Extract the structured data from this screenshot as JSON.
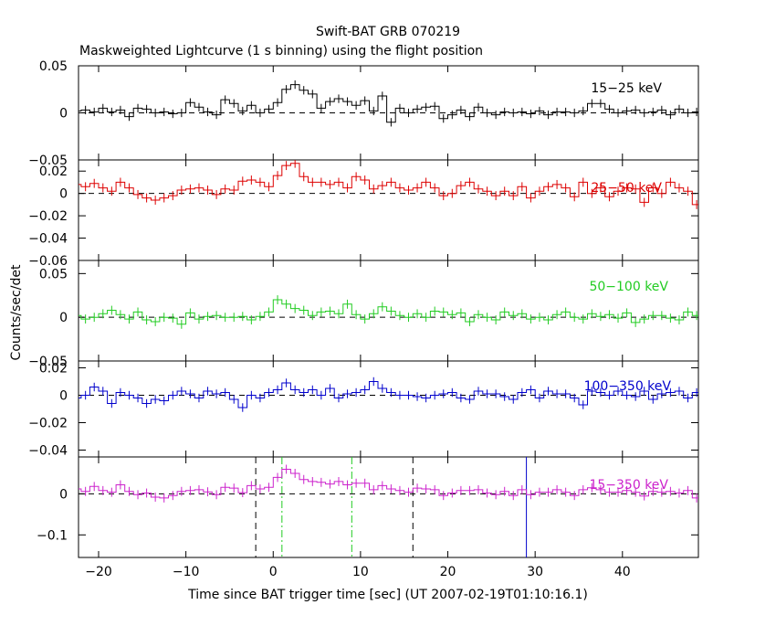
{
  "figure": {
    "title": "Swift-BAT GRB 070219",
    "subtitle": "Maskweighted Lightcurve (1 s binning) using the flight position",
    "xlabel": "Time since BAT trigger time [sec] (UT 2007-02-19T01:10:16.1)",
    "ylabel": "Counts/sec/det"
  },
  "chart_data": [
    {
      "type": "line",
      "series": [
        {
          "name": "15−25 keV",
          "color": "#000000",
          "x": [
            -22.5,
            -21.5,
            -20.5,
            -19.5,
            -18.5,
            -17.5,
            -16.5,
            -15.5,
            -14.5,
            -13.5,
            -12.5,
            -11.5,
            -10.5,
            -9.5,
            -8.5,
            -7.5,
            -6.5,
            -5.5,
            -4.5,
            -3.5,
            -2.5,
            -1.5,
            -0.5,
            0.5,
            1.5,
            2.5,
            3.5,
            4.5,
            5.5,
            6.5,
            7.5,
            8.5,
            9.5,
            10.5,
            11.5,
            12.5,
            13.5,
            14.5,
            15.5,
            16.5,
            17.5,
            18.5,
            19.5,
            20.5,
            21.5,
            22.5,
            23.5,
            24.5,
            25.5,
            26.5,
            27.5,
            28.5,
            29.5,
            30.5,
            31.5,
            32.5,
            33.5,
            34.5,
            35.5,
            36.5,
            37.5,
            38.5,
            39.5,
            40.5,
            41.5,
            42.5,
            43.5,
            44.5,
            45.5,
            46.5,
            47.5,
            48.5
          ],
          "y": [
            0.002,
            0.003,
            0.001,
            0.005,
            0.001,
            0.003,
            -0.004,
            0.005,
            0.004,
            0.0,
            0.001,
            -0.001,
            0.0,
            0.011,
            0.006,
            0.001,
            -0.002,
            0.014,
            0.01,
            0.002,
            0.008,
            0.0,
            0.004,
            0.011,
            0.025,
            0.03,
            0.024,
            0.02,
            0.005,
            0.012,
            0.015,
            0.012,
            0.008,
            0.013,
            0.002,
            0.018,
            -0.01,
            0.005,
            0.0,
            0.004,
            0.006,
            0.007,
            -0.006,
            -0.002,
            0.003,
            -0.004,
            0.006,
            0.0,
            -0.002,
            0.001,
            0.0,
            0.001,
            -0.001,
            0.002,
            -0.002,
            0.001,
            0.001,
            0.0,
            0.002,
            0.01,
            0.01,
            0.004,
            0.0,
            0.002,
            0.003,
            0.0,
            0.001,
            0.003,
            -0.002,
            0.004,
            0.0,
            0.001
          ]
        }
      ],
      "ylim": [
        -0.05,
        0.05
      ],
      "yticks": [
        {
          "value": -0.05,
          "label": "−0.05"
        },
        {
          "value": 0,
          "label": "0"
        },
        {
          "value": 0.05,
          "label": "0.05"
        }
      ]
    },
    {
      "type": "line",
      "series": [
        {
          "name": "25−50 keV",
          "color": "#dd0000",
          "x": [
            -22.5,
            -21.5,
            -20.5,
            -19.5,
            -18.5,
            -17.5,
            -16.5,
            -15.5,
            -14.5,
            -13.5,
            -12.5,
            -11.5,
            -10.5,
            -9.5,
            -8.5,
            -7.5,
            -6.5,
            -5.5,
            -4.5,
            -3.5,
            -2.5,
            -1.5,
            -0.5,
            0.5,
            1.5,
            2.5,
            3.5,
            4.5,
            5.5,
            6.5,
            7.5,
            8.5,
            9.5,
            10.5,
            11.5,
            12.5,
            13.5,
            14.5,
            15.5,
            16.5,
            17.5,
            18.5,
            19.5,
            20.5,
            21.5,
            22.5,
            23.5,
            24.5,
            25.5,
            26.5,
            27.5,
            28.5,
            29.5,
            30.5,
            31.5,
            32.5,
            33.5,
            34.5,
            35.5,
            36.5,
            37.5,
            38.5,
            39.5,
            40.5,
            41.5,
            42.5,
            43.5,
            44.5,
            45.5,
            46.5,
            47.5,
            48.5
          ],
          "y": [
            0.008,
            0.006,
            0.009,
            0.005,
            0.002,
            0.01,
            0.005,
            -0.001,
            -0.004,
            -0.006,
            -0.004,
            -0.002,
            0.003,
            0.004,
            0.005,
            0.003,
            -0.001,
            0.004,
            0.003,
            0.011,
            0.012,
            0.01,
            0.006,
            0.016,
            0.025,
            0.027,
            0.015,
            0.01,
            0.01,
            0.008,
            0.01,
            0.005,
            0.015,
            0.012,
            0.004,
            0.007,
            0.01,
            0.005,
            0.003,
            0.005,
            0.01,
            0.005,
            -0.002,
            0.0,
            0.007,
            0.01,
            0.004,
            0.002,
            -0.002,
            0.002,
            -0.002,
            0.006,
            -0.004,
            0.002,
            0.006,
            0.008,
            0.005,
            -0.003,
            0.01,
            0.0,
            0.005,
            -0.003,
            0.002,
            0.005,
            0.004,
            -0.008,
            0.005,
            0.0,
            0.01,
            0.005,
            0.002,
            -0.01
          ]
        }
      ],
      "ylim": [
        -0.06,
        0.03
      ],
      "yticks": [
        {
          "value": -0.06,
          "label": "−0.06"
        },
        {
          "value": -0.04,
          "label": "−0.04"
        },
        {
          "value": -0.02,
          "label": "−0.02"
        },
        {
          "value": 0,
          "label": "0"
        },
        {
          "value": 0.02,
          "label": "0.02"
        }
      ]
    },
    {
      "type": "line",
      "series": [
        {
          "name": "50−100 keV",
          "color": "#22cc22",
          "x": [
            -22.5,
            -21.5,
            -20.5,
            -19.5,
            -18.5,
            -17.5,
            -16.5,
            -15.5,
            -14.5,
            -13.5,
            -12.5,
            -11.5,
            -10.5,
            -9.5,
            -8.5,
            -7.5,
            -6.5,
            -5.5,
            -4.5,
            -3.5,
            -2.5,
            -1.5,
            -0.5,
            0.5,
            1.5,
            2.5,
            3.5,
            4.5,
            5.5,
            6.5,
            7.5,
            8.5,
            9.5,
            10.5,
            11.5,
            12.5,
            13.5,
            14.5,
            15.5,
            16.5,
            17.5,
            18.5,
            19.5,
            20.5,
            21.5,
            22.5,
            23.5,
            24.5,
            25.5,
            26.5,
            27.5,
            28.5,
            29.5,
            30.5,
            31.5,
            32.5,
            33.5,
            34.5,
            35.5,
            36.5,
            37.5,
            38.5,
            39.5,
            40.5,
            41.5,
            42.5,
            43.5,
            44.5,
            45.5,
            46.5,
            47.5,
            48.5
          ],
          "y": [
            0.002,
            -0.002,
            0.0,
            0.004,
            0.008,
            0.003,
            -0.002,
            0.006,
            -0.003,
            -0.005,
            0.0,
            -0.001,
            -0.008,
            0.005,
            -0.002,
            0.001,
            0.002,
            0.0,
            0.0,
            0.001,
            -0.003,
            0.001,
            0.006,
            0.02,
            0.015,
            0.01,
            0.008,
            0.002,
            0.006,
            0.007,
            0.004,
            0.015,
            0.003,
            -0.002,
            0.004,
            0.012,
            0.007,
            0.002,
            0.0,
            0.004,
            0.0,
            0.007,
            0.006,
            0.003,
            0.005,
            -0.005,
            0.003,
            0.0,
            -0.003,
            0.006,
            0.002,
            0.004,
            -0.002,
            0.0,
            -0.003,
            0.003,
            0.006,
            0.0,
            -0.002,
            0.004,
            0.001,
            0.003,
            -0.001,
            0.005,
            -0.006,
            -0.002,
            0.002,
            0.002,
            -0.001,
            -0.003,
            0.006,
            0.002
          ]
        }
      ],
      "ylim": [
        -0.05,
        0.065
      ],
      "yticks": [
        {
          "value": -0.05,
          "label": "−0.05"
        },
        {
          "value": 0,
          "label": "0"
        },
        {
          "value": 0.05,
          "label": "0.05"
        }
      ]
    },
    {
      "type": "line",
      "series": [
        {
          "name": "100−350 keV",
          "color": "#0000cc",
          "x": [
            -22.5,
            -21.5,
            -20.5,
            -19.5,
            -18.5,
            -17.5,
            -16.5,
            -15.5,
            -14.5,
            -13.5,
            -12.5,
            -11.5,
            -10.5,
            -9.5,
            -8.5,
            -7.5,
            -6.5,
            -5.5,
            -4.5,
            -3.5,
            -2.5,
            -1.5,
            -0.5,
            0.5,
            1.5,
            2.5,
            3.5,
            4.5,
            5.5,
            6.5,
            7.5,
            8.5,
            9.5,
            10.5,
            11.5,
            12.5,
            13.5,
            14.5,
            15.5,
            16.5,
            17.5,
            18.5,
            19.5,
            20.5,
            21.5,
            22.5,
            23.5,
            24.5,
            25.5,
            26.5,
            27.5,
            28.5,
            29.5,
            30.5,
            31.5,
            32.5,
            33.5,
            34.5,
            35.5,
            36.5,
            37.5,
            38.5,
            39.5,
            40.5,
            41.5,
            42.5,
            43.5,
            44.5,
            45.5,
            46.5,
            47.5,
            48.5
          ],
          "y": [
            -0.002,
            0.0,
            0.006,
            0.003,
            -0.006,
            0.002,
            0.0,
            -0.002,
            -0.006,
            -0.003,
            -0.004,
            0.0,
            0.003,
            0.001,
            -0.002,
            0.003,
            0.001,
            0.002,
            -0.003,
            -0.009,
            0.0,
            -0.002,
            0.002,
            0.004,
            0.009,
            0.004,
            0.002,
            0.004,
            0.0,
            0.005,
            -0.002,
            0.001,
            0.002,
            0.004,
            0.01,
            0.005,
            0.002,
            0.0,
            0.0,
            -0.001,
            -0.002,
            0.0,
            0.001,
            0.002,
            -0.002,
            -0.003,
            0.003,
            0.001,
            0.001,
            -0.001,
            -0.003,
            0.002,
            0.004,
            -0.002,
            0.003,
            0.001,
            0.001,
            -0.002,
            -0.007,
            0.003,
            0.002,
            0.0,
            0.003,
            0.0,
            -0.001,
            0.003,
            -0.003,
            0.001,
            0.002,
            0.003,
            -0.002,
            0.002
          ]
        }
      ],
      "ylim": [
        -0.045,
        0.025
      ],
      "yticks": [
        {
          "value": -0.04,
          "label": "−0.04"
        },
        {
          "value": -0.02,
          "label": "−0.02"
        },
        {
          "value": 0,
          "label": "0"
        },
        {
          "value": 0.02,
          "label": "0.02"
        }
      ]
    },
    {
      "type": "line",
      "series": [
        {
          "name": "15−350 keV",
          "color": "#cc22cc",
          "x": [
            -22.5,
            -21.5,
            -20.5,
            -19.5,
            -18.5,
            -17.5,
            -16.5,
            -15.5,
            -14.5,
            -13.5,
            -12.5,
            -11.5,
            -10.5,
            -9.5,
            -8.5,
            -7.5,
            -6.5,
            -5.5,
            -4.5,
            -3.5,
            -2.5,
            -1.5,
            -0.5,
            0.5,
            1.5,
            2.5,
            3.5,
            4.5,
            5.5,
            6.5,
            7.5,
            8.5,
            9.5,
            10.5,
            11.5,
            12.5,
            13.5,
            14.5,
            15.5,
            16.5,
            17.5,
            18.5,
            19.5,
            20.5,
            21.5,
            22.5,
            23.5,
            24.5,
            25.5,
            26.5,
            27.5,
            28.5,
            29.5,
            30.5,
            31.5,
            32.5,
            33.5,
            34.5,
            35.5,
            36.5,
            37.5,
            38.5,
            39.5,
            40.5,
            41.5,
            42.5,
            43.5,
            44.5,
            45.5,
            46.5,
            47.5,
            48.5
          ],
          "y": [
            0.012,
            0.006,
            0.018,
            0.008,
            0.004,
            0.022,
            0.006,
            -0.002,
            0.002,
            -0.008,
            -0.01,
            -0.004,
            0.006,
            0.008,
            0.01,
            0.005,
            -0.002,
            0.016,
            0.014,
            0.003,
            0.02,
            0.012,
            0.016,
            0.04,
            0.06,
            0.05,
            0.035,
            0.03,
            0.028,
            0.024,
            0.03,
            0.022,
            0.026,
            0.026,
            0.01,
            0.02,
            0.012,
            0.008,
            0.004,
            0.014,
            0.012,
            0.01,
            -0.004,
            0.002,
            0.008,
            0.008,
            0.01,
            0.002,
            -0.002,
            0.006,
            -0.004,
            0.01,
            -0.002,
            0.004,
            0.004,
            0.01,
            0.004,
            -0.004,
            0.01,
            0.015,
            0.01,
            0.004,
            0.004,
            0.008,
            0.004,
            -0.005,
            0.006,
            0.004,
            0.006,
            0.002,
            0.008,
            -0.01
          ]
        }
      ],
      "ylim": [
        -0.155,
        0.09
      ],
      "yticks": [
        {
          "value": -0.1,
          "label": "−0.1"
        },
        {
          "value": 0,
          "label": "0"
        }
      ],
      "vlines": [
        {
          "x": -2,
          "style": "dashed",
          "color": "#000000"
        },
        {
          "x": 16,
          "style": "dashed",
          "color": "#000000"
        },
        {
          "x": 1,
          "style": "dashdot",
          "color": "#22cc22"
        },
        {
          "x": 9,
          "style": "dashdot",
          "color": "#22cc22"
        },
        {
          "x": 29,
          "style": "solid",
          "color": "#0000cc"
        }
      ]
    }
  ],
  "xaxis": {
    "xlim": [
      -22.3,
      48.7
    ],
    "ticks": [
      {
        "value": -20,
        "label": "−20"
      },
      {
        "value": -10,
        "label": "−10"
      },
      {
        "value": 0,
        "label": "0"
      },
      {
        "value": 10,
        "label": "10"
      },
      {
        "value": 20,
        "label": "20"
      },
      {
        "value": 30,
        "label": "30"
      },
      {
        "value": 40,
        "label": "40"
      }
    ]
  }
}
